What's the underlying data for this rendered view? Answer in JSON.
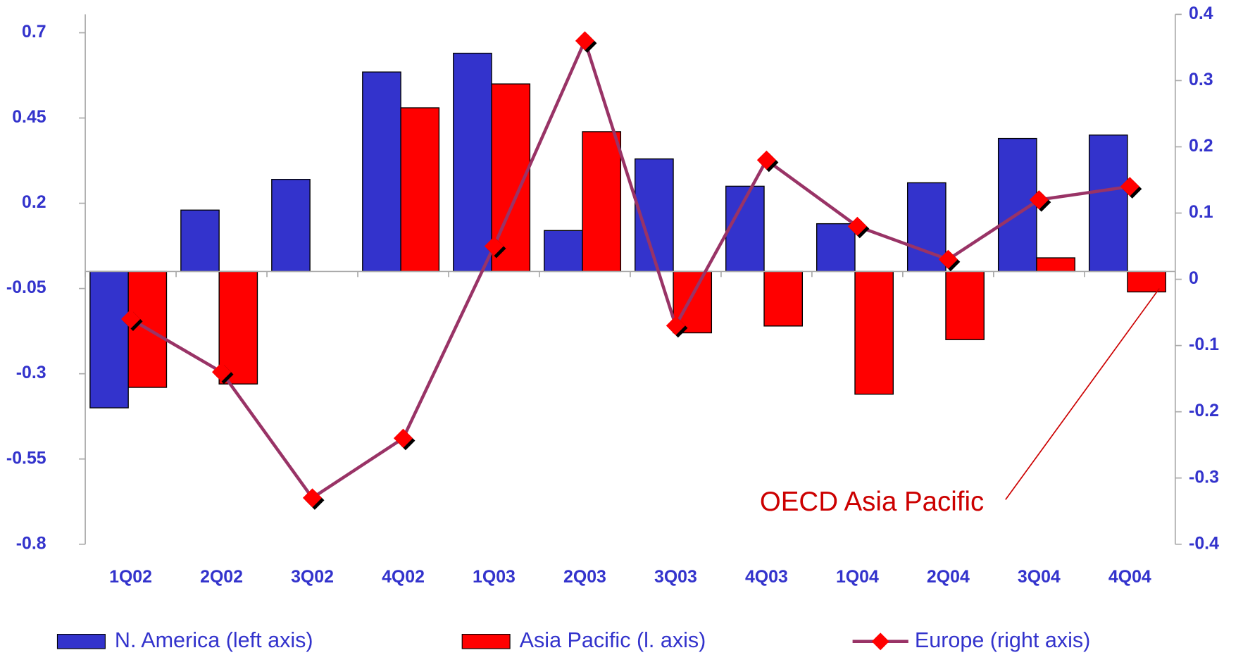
{
  "chart_data": {
    "type": "bar-line",
    "categories": [
      "1Q02",
      "2Q02",
      "3Q02",
      "4Q02",
      "1Q03",
      "2Q03",
      "3Q03",
      "4Q03",
      "1Q04",
      "2Q04",
      "3Q04",
      "4Q04"
    ],
    "series": [
      {
        "name": "N. America (left axis)",
        "color": "#3333cc",
        "type": "bar",
        "values": [
          -0.4,
          0.18,
          0.27,
          0.585,
          0.64,
          0.12,
          0.33,
          0.25,
          0.14,
          0.26,
          0.39,
          0.4
        ]
      },
      {
        "name": "Asia Pacific (l. axis)",
        "color": "#ff0000",
        "type": "bar",
        "values": [
          -0.34,
          -0.33,
          0,
          0.48,
          0.55,
          0.41,
          -0.18,
          -0.16,
          -0.36,
          -0.2,
          0.04,
          -0.06
        ]
      },
      {
        "name": "Europe (right axis)",
        "color": "#993366",
        "marker_color": "#ff0000",
        "type": "line",
        "axis": "y2",
        "values": [
          -0.06,
          -0.14,
          -0.33,
          -0.24,
          0.05,
          0.36,
          -0.07,
          0.18,
          0.08,
          0.03,
          0.12,
          0.14
        ]
      }
    ],
    "ylim": [
      -0.8,
      0.754
    ],
    "yticks": [
      -0.8,
      -0.55,
      -0.3,
      -0.05,
      0.2,
      0.45,
      0.7
    ],
    "y2lim": [
      -0.4,
      0.4
    ],
    "y2ticks": [
      -0.4,
      -0.3,
      -0.2,
      -0.1,
      0,
      0.1,
      0.2,
      0.3,
      0.4
    ],
    "annotation": "OECD Asia Pacific"
  }
}
